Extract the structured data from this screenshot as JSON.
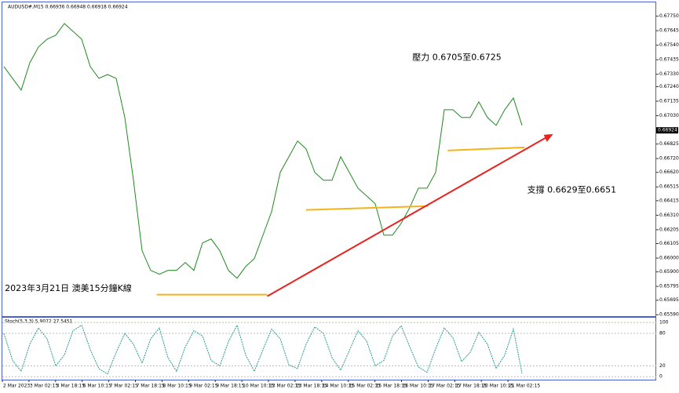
{
  "chart_data": {
    "type": "line",
    "header": "AUDUSD#,M15  0.66936 0.66948 0.66918 0.66924",
    "annotations": [
      {
        "text": "壓力 0.6705至0.6725",
        "x": 47.3,
        "y": 0.6745
      },
      {
        "text": "支撐 0.6629至0.6651",
        "x": 60.6,
        "y": 0.6649
      },
      {
        "text": "2023年3月21日 澳美15分鐘K線",
        "x": 0.1,
        "y": 0.6578
      }
    ],
    "current_price": {
      "value": 0.66924,
      "label": "0.66924"
    },
    "series": [
      {
        "color": "#1f8a1f",
        "values": [
          0.67385,
          0.673,
          0.67215,
          0.67413,
          0.67527,
          0.67584,
          0.67612,
          0.67697,
          0.6764,
          0.67584,
          0.67385,
          0.673,
          0.67328,
          0.673,
          0.67017,
          0.66563,
          0.66053,
          0.65911,
          0.65883,
          0.65911,
          0.65911,
          0.65968,
          0.65911,
          0.6611,
          0.66138,
          0.66053,
          0.65911,
          0.65854,
          0.65939,
          0.65996,
          0.66166,
          0.66336,
          0.6662,
          0.66733,
          0.66847,
          0.6679,
          0.6662,
          0.66563,
          0.66563,
          0.66733,
          0.6662,
          0.66506,
          0.6645,
          0.66393,
          0.66166,
          0.66166,
          0.66251,
          0.66365,
          0.66506,
          0.66506,
          0.6662,
          0.67073,
          0.67073,
          0.67017,
          0.67017,
          0.6713,
          0.67017,
          0.6696,
          0.67073,
          0.67158,
          0.6696
        ]
      }
    ],
    "lines": [
      {
        "color": "#f5b21b",
        "x": [
          17.7,
          30.5
        ],
        "values": [
          0.65735,
          0.65735
        ]
      },
      {
        "color": "#f5b21b",
        "x": [
          35,
          49.1
        ],
        "values": [
          0.66348,
          0.66376
        ]
      },
      {
        "color": "#f5b21b",
        "x": [
          51.4,
          60.3
        ],
        "values": [
          0.66778,
          0.66801
        ]
      },
      {
        "color": "#e8231f",
        "x": [
          30.5,
          62.7
        ],
        "values": [
          0.65724,
          0.66869
        ]
      }
    ],
    "ylim": [
      0.6558,
      0.6785
    ],
    "yticks": [
      {
        "value": 0.6775,
        "label": "0.67750"
      },
      {
        "value": 0.67645,
        "label": "0.67645"
      },
      {
        "value": 0.6754,
        "label": "0.67540"
      },
      {
        "value": 0.67435,
        "label": "0.67435"
      },
      {
        "value": 0.6733,
        "label": "0.67330"
      },
      {
        "value": 0.6724,
        "label": "0.67240"
      },
      {
        "value": 0.67135,
        "label": "0.67135"
      },
      {
        "value": 0.6703,
        "label": "0.67030"
      },
      {
        "value": 0.66825,
        "label": "0.66825"
      },
      {
        "value": 0.6672,
        "label": "0.66720"
      },
      {
        "value": 0.6662,
        "label": "0.66620"
      },
      {
        "value": 0.66515,
        "label": "0.66515"
      },
      {
        "value": 0.66415,
        "label": "0.66415"
      },
      {
        "value": 0.6631,
        "label": "0.66310"
      },
      {
        "value": 0.66205,
        "label": "0.66205"
      },
      {
        "value": 0.66105,
        "label": "0.66105"
      },
      {
        "value": 0.66,
        "label": "0.66000"
      },
      {
        "value": 0.659,
        "label": "0.65900"
      },
      {
        "value": 0.65795,
        "label": "0.65795"
      },
      {
        "value": 0.65695,
        "label": "0.65695"
      },
      {
        "value": 0.6559,
        "label": "0.65590"
      }
    ],
    "xlabels": [
      "2 Mar 2023",
      "3 Mar 02:15",
      "3 Mar 18:15",
      "6 Mar 10:15",
      "7 Mar 02:15",
      "7 Mar 18:15",
      "8 Mar 10:15",
      "9 Mar 02:15",
      "9 Mar 18:15",
      "10 Mar 10:15",
      "13 Mar 02:15",
      "13 Mar 18:15",
      "14 Mar 10:15",
      "15 Mar 02:15",
      "15 Mar 18:15",
      "16 Mar 10:15",
      "17 Mar 02:15",
      "17 Mar 18:15",
      "20 Mar 10:15",
      "21 Mar 02:15"
    ],
    "stoch": {
      "label": "Stoch(5,3,3) 5.9072 27.5451",
      "color": "#2a9d8f",
      "values": [
        80,
        30,
        10,
        60,
        90,
        70,
        20,
        40,
        85,
        95,
        50,
        15,
        5,
        45,
        80,
        60,
        25,
        70,
        90,
        35,
        10,
        55,
        85,
        75,
        30,
        20,
        65,
        95,
        40,
        10,
        50,
        88,
        70,
        22,
        15,
        60,
        92,
        80,
        35,
        12,
        48,
        85,
        66,
        20,
        30,
        75,
        94,
        55,
        18,
        8,
        52,
        90,
        72,
        28,
        45,
        82,
        60,
        15,
        40,
        88,
        6
      ],
      "ylim": [
        -4,
        106
      ],
      "yticks": [
        100,
        80,
        20,
        0
      ]
    }
  }
}
